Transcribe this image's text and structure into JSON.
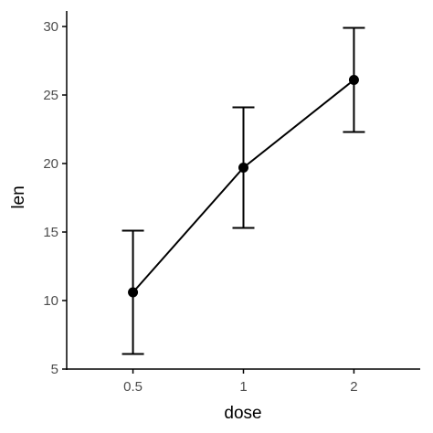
{
  "chart_data": {
    "type": "line",
    "xlabel": "dose",
    "ylabel": "len",
    "categories": [
      "0.5",
      "1",
      "2"
    ],
    "series": [
      {
        "values": [
          10.6,
          19.7,
          26.1
        ],
        "error_low": [
          6.1,
          15.3,
          22.3
        ],
        "error_high": [
          15.1,
          24.1,
          29.9
        ]
      }
    ],
    "ylim": [
      5,
      30
    ],
    "yticks": [
      5,
      10,
      15,
      20,
      25,
      30
    ],
    "grid": false,
    "legend": "none",
    "colors": {
      "line": "#000000",
      "axis": "#000000",
      "tick_text": "#4d4d4d"
    }
  }
}
